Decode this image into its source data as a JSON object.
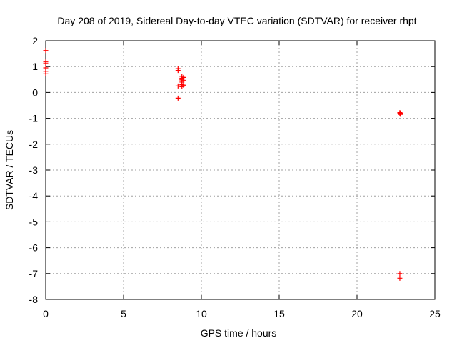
{
  "chart_data": {
    "type": "scatter",
    "title": "Day 208 of 2019, Sidereal Day-to-day VTEC variation (SDTVAR) for receiver rhpt",
    "xlabel": "GPS time / hours",
    "ylabel": "SDTVAR / TECUs",
    "xlim": [
      0,
      25
    ],
    "ylim": [
      -8,
      2
    ],
    "xticks": [
      0,
      5,
      10,
      15,
      20,
      25
    ],
    "yticks": [
      -8,
      -7,
      -6,
      -5,
      -4,
      -3,
      -2,
      -1,
      0,
      1,
      2
    ],
    "grid": true,
    "marker": "plus",
    "color": "#ff0000",
    "series": [
      {
        "points": [
          [
            0.0,
            1.62
          ],
          [
            0.0,
            1.18
          ],
          [
            0.0,
            1.12
          ],
          [
            0.0,
            0.95
          ],
          [
            0.0,
            0.82
          ],
          [
            0.0,
            0.72
          ],
          [
            8.5,
            0.92
          ],
          [
            8.5,
            0.85
          ],
          [
            8.5,
            0.25
          ],
          [
            8.5,
            -0.22
          ],
          [
            8.75,
            0.62
          ],
          [
            8.75,
            0.55
          ],
          [
            8.75,
            0.5
          ],
          [
            8.75,
            0.45
          ],
          [
            8.75,
            0.4
          ],
          [
            8.75,
            0.3
          ],
          [
            8.75,
            0.22
          ],
          [
            8.85,
            0.58
          ],
          [
            8.85,
            0.52
          ],
          [
            8.85,
            0.46
          ],
          [
            8.85,
            0.28
          ],
          [
            22.75,
            -0.78
          ],
          [
            22.75,
            -0.82
          ],
          [
            22.8,
            -0.8
          ],
          [
            22.8,
            -0.85
          ],
          [
            22.75,
            -7.0
          ],
          [
            22.75,
            -7.18
          ]
        ]
      }
    ]
  }
}
